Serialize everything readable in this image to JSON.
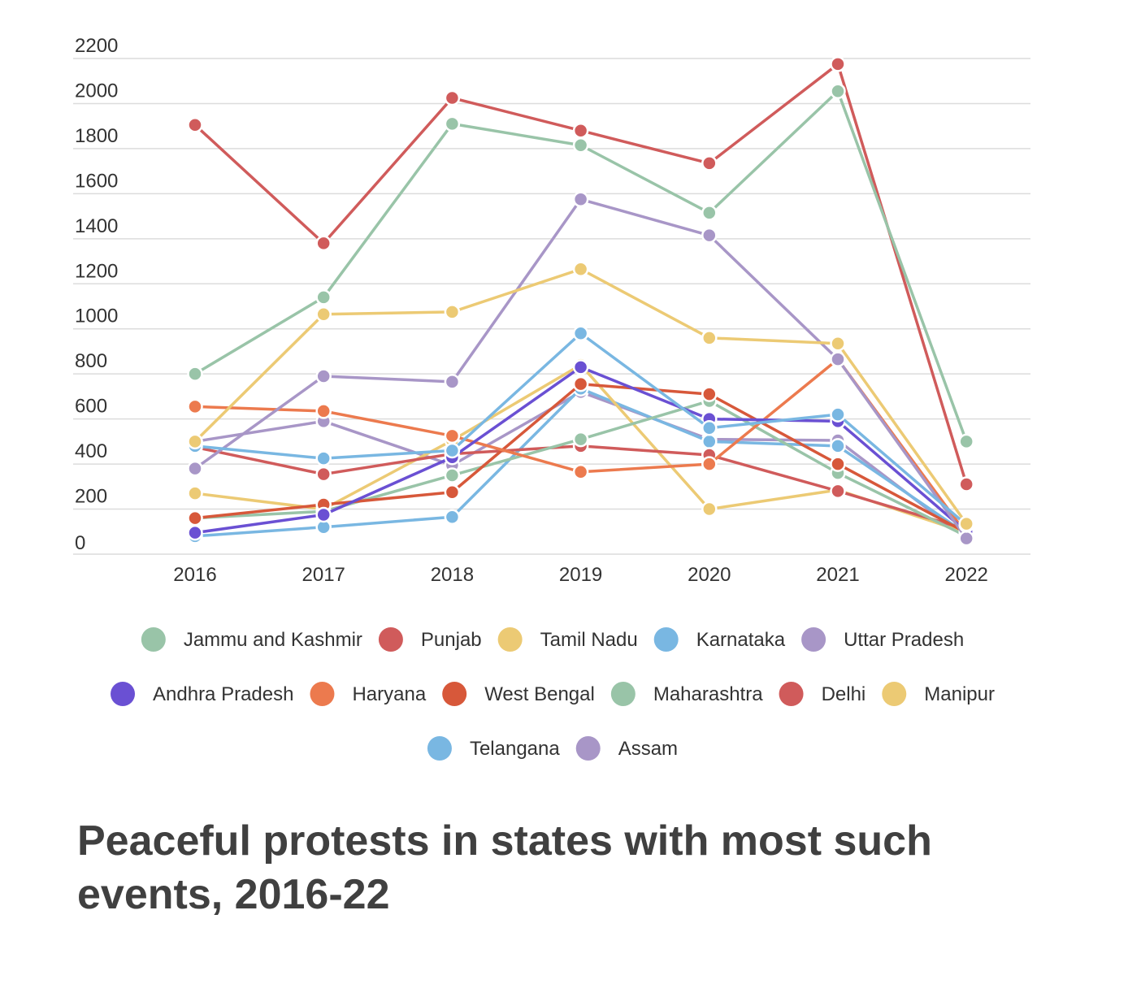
{
  "chart_data": {
    "type": "line",
    "title": "Peaceful protests in states with most such events, 2016-22",
    "xlabel": "",
    "ylabel": "",
    "x": [
      "2016",
      "2017",
      "2018",
      "2019",
      "2020",
      "2021",
      "2022"
    ],
    "ylim": [
      0,
      2200
    ],
    "yticks": [
      0,
      200,
      400,
      600,
      800,
      1000,
      1200,
      1400,
      1600,
      1800,
      2000,
      2200
    ],
    "grid": true,
    "legend_position": "bottom",
    "series": [
      {
        "name": "Jammu and Kashmir",
        "color": "#99c4a8",
        "values": [
          800,
          1140,
          1910,
          1815,
          1515,
          2055,
          500
        ]
      },
      {
        "name": "Punjab",
        "color": "#d05b5b",
        "values": [
          1905,
          1380,
          2025,
          1880,
          1735,
          2175,
          310
        ]
      },
      {
        "name": "Tamil Nadu",
        "color": "#ecca74",
        "values": [
          500,
          1065,
          1075,
          1265,
          960,
          935,
          135
        ]
      },
      {
        "name": "Karnataka",
        "color": "#79b7e2",
        "values": [
          480,
          425,
          460,
          980,
          560,
          620,
          130
        ]
      },
      {
        "name": "Uttar Pradesh",
        "color": "#a896c7",
        "values": [
          380,
          790,
          765,
          1575,
          1415,
          865,
          70
        ]
      },
      {
        "name": "Andhra Pradesh",
        "color": "#6a50d3",
        "values": [
          95,
          175,
          430,
          830,
          600,
          590,
          100
        ]
      },
      {
        "name": "Haryana",
        "color": "#ec7a4e",
        "values": [
          655,
          635,
          525,
          365,
          400,
          865,
          90
        ]
      },
      {
        "name": "West Bengal",
        "color": "#d7583a",
        "values": [
          160,
          220,
          275,
          755,
          710,
          400,
          95
        ]
      },
      {
        "name": "Maharashtra",
        "color": "#99c4a8",
        "values": [
          160,
          190,
          350,
          510,
          680,
          360,
          80
        ]
      },
      {
        "name": "Delhi",
        "color": "#d05b5b",
        "values": [
          475,
          355,
          445,
          480,
          440,
          280,
          110
        ]
      },
      {
        "name": "Manipur",
        "color": "#ecca74",
        "values": [
          270,
          200,
          505,
          840,
          200,
          285,
          95
        ]
      },
      {
        "name": "Telangana",
        "color": "#79b7e2",
        "values": [
          80,
          120,
          165,
          735,
          500,
          480,
          90
        ]
      },
      {
        "name": "Assam",
        "color": "#a896c7",
        "values": [
          500,
          590,
          395,
          720,
          510,
          505,
          70
        ]
      }
    ]
  }
}
